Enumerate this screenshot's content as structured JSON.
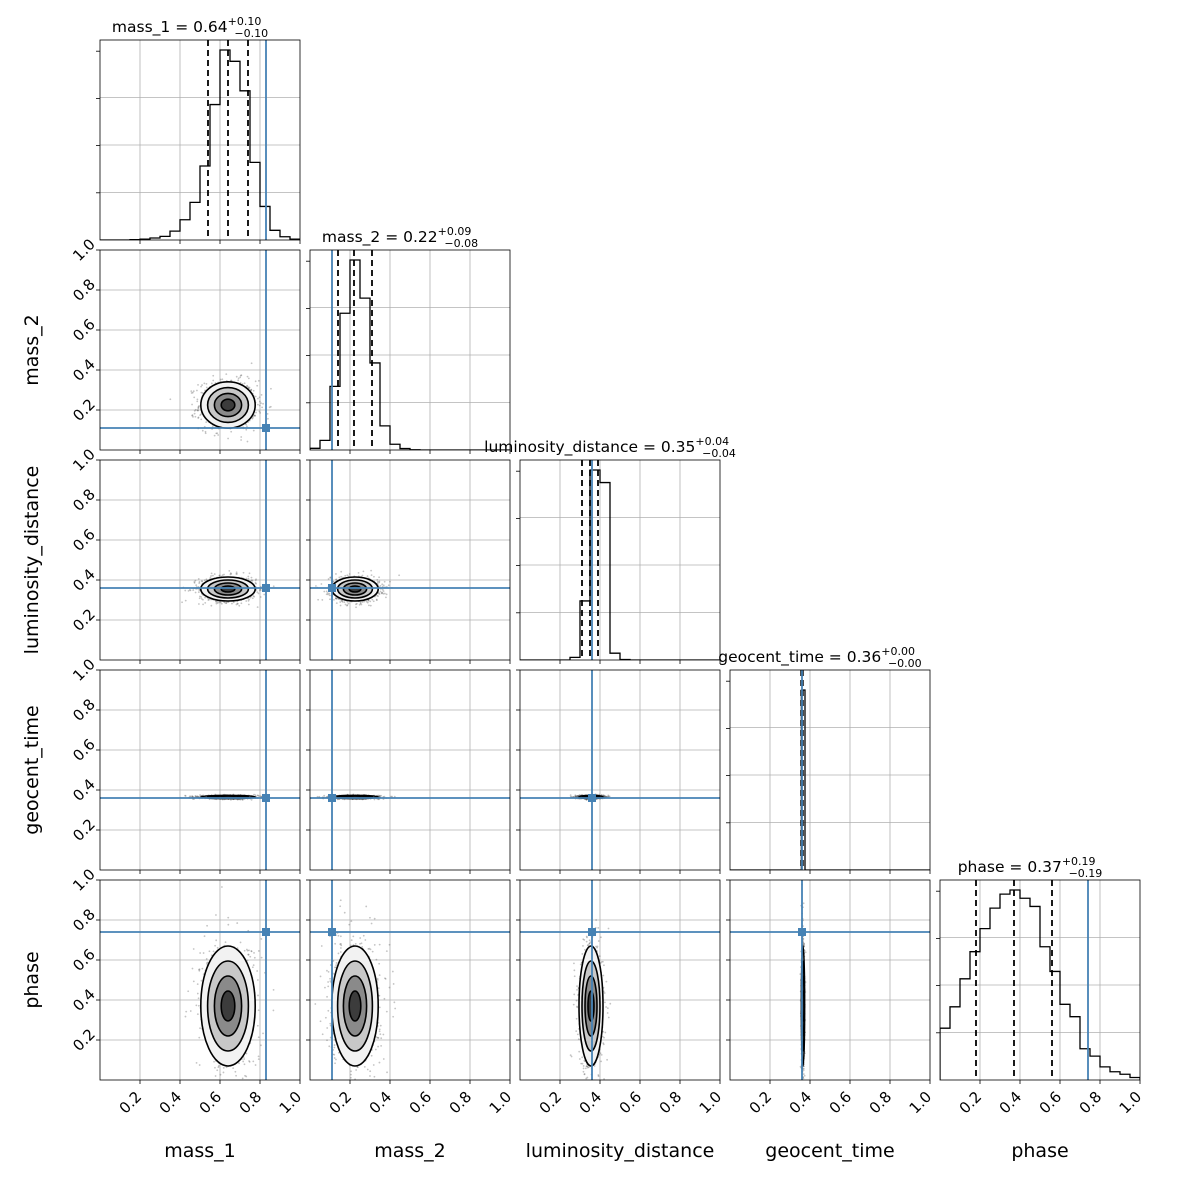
{
  "chart_data": {
    "type": "corner",
    "parameters": [
      "mass_1",
      "mass_2",
      "luminosity_distance",
      "geocent_time",
      "phase"
    ],
    "axis_labels": [
      "mass_1",
      "mass_2",
      "luminosity_distance",
      "geocent_time",
      "phase"
    ],
    "axis_range": [
      0,
      1
    ],
    "tick_labels": [
      "0.2",
      "0.4",
      "0.6",
      "0.8",
      "1.0"
    ],
    "grid": true,
    "truth_color": "#4682b4",
    "titles": [
      {
        "name": "mass_1",
        "median": "0.64",
        "plus": "+0.10",
        "minus": "−0.10"
      },
      {
        "name": "mass_2",
        "median": "0.22",
        "plus": "+0.09",
        "minus": "−0.08"
      },
      {
        "name": "luminosity_distance",
        "median": "0.35",
        "plus": "+0.04",
        "minus": "−0.04"
      },
      {
        "name": "geocent_time",
        "median": "0.36",
        "plus": "+0.00",
        "minus": "−0.00"
      },
      {
        "name": "phase",
        "median": "0.37",
        "plus": "+0.19",
        "minus": "−0.19"
      }
    ],
    "truths": [
      0.83,
      0.11,
      0.36,
      0.36,
      0.74
    ],
    "quantiles": [
      [
        0.54,
        0.64,
        0.74
      ],
      [
        0.14,
        0.22,
        0.31
      ],
      [
        0.31,
        0.35,
        0.39
      ],
      [
        0.356,
        0.36,
        0.364
      ],
      [
        0.18,
        0.37,
        0.56
      ]
    ],
    "marginals": [
      {
        "bins": [
          0.0,
          0.05,
          0.1,
          0.15,
          0.2,
          0.25,
          0.3,
          0.35,
          0.4,
          0.45,
          0.5,
          0.55,
          0.6,
          0.65,
          0.7,
          0.75,
          0.8,
          0.85,
          0.9,
          0.95,
          1.0
        ],
        "counts": [
          0,
          0,
          0,
          1,
          2,
          5,
          9,
          22,
          50,
          93,
          183,
          335,
          470,
          442,
          369,
          192,
          83,
          24,
          8,
          2
        ]
      },
      {
        "bins": [
          0.0,
          0.05,
          0.1,
          0.15,
          0.2,
          0.25,
          0.3,
          0.35,
          0.4,
          0.45,
          0.5,
          0.55,
          0.6,
          0.65,
          0.7,
          0.75,
          0.8,
          0.85,
          0.9,
          0.95,
          1.0
        ],
        "counts": [
          7,
          40,
          264,
          567,
          788,
          630,
          361,
          100,
          24,
          6,
          1,
          0,
          0,
          0,
          0,
          0,
          0,
          0,
          0,
          0
        ]
      },
      {
        "bins": [
          0.0,
          0.05,
          0.1,
          0.15,
          0.2,
          0.25,
          0.3,
          0.35,
          0.4,
          0.45,
          0.5,
          0.55,
          0.6,
          0.65,
          0.7,
          0.75,
          0.8,
          0.85,
          0.9,
          0.95,
          1.0
        ],
        "counts": [
          0,
          0,
          0,
          0,
          0,
          12,
          268,
          862,
          805,
          31,
          2,
          0,
          0,
          0,
          0,
          0,
          0,
          0,
          0,
          0
        ]
      },
      {
        "bins": [
          0.0,
          0.05,
          0.1,
          0.15,
          0.2,
          0.25,
          0.3,
          0.35,
          0.4,
          0.45,
          0.5,
          0.55,
          0.6,
          0.65,
          0.7,
          0.75,
          0.8,
          0.85,
          0.9,
          0.95,
          1.0
        ],
        "counts": [
          0,
          0,
          0,
          0,
          0,
          0,
          0,
          2000,
          0,
          0,
          0,
          0,
          0,
          0,
          0,
          0,
          0,
          0,
          0,
          0
        ]
      },
      {
        "bins": [
          0.0,
          0.05,
          0.1,
          0.15,
          0.2,
          0.25,
          0.3,
          0.35,
          0.4,
          0.45,
          0.5,
          0.55,
          0.6,
          0.65,
          0.7,
          0.75,
          0.8,
          0.85,
          0.9,
          0.95,
          1.0
        ],
        "counts": [
          63,
          89,
          123,
          156,
          184,
          209,
          226,
          231,
          221,
          211,
          162,
          132,
          92,
          77,
          38,
          29,
          16,
          10,
          7,
          3
        ]
      }
    ],
    "stats": [
      {
        "mean": 0.64,
        "sd": 0.068
      },
      {
        "mean": 0.225,
        "sd": 0.058
      },
      {
        "mean": 0.355,
        "sd": 0.03
      },
      {
        "mean": 0.365,
        "sd": 0.004
      },
      {
        "mean": 0.37,
        "sd": 0.15
      }
    ]
  }
}
